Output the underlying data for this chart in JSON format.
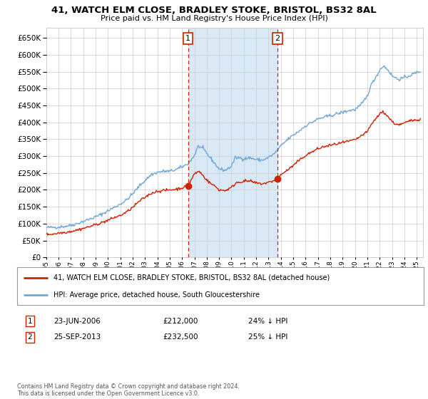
{
  "title": "41, WATCH ELM CLOSE, BRADLEY STOKE, BRISTOL, BS32 8AL",
  "subtitle": "Price paid vs. HM Land Registry's House Price Index (HPI)",
  "legend_line1": "41, WATCH ELM CLOSE, BRADLEY STOKE, BRISTOL, BS32 8AL (detached house)",
  "legend_line2": "HPI: Average price, detached house, South Gloucestershire",
  "event1_label": "1",
  "event1_date": "23-JUN-2006",
  "event1_price": "£212,000",
  "event1_pct": "24% ↓ HPI",
  "event2_label": "2",
  "event2_date": "25-SEP-2013",
  "event2_price": "£232,500",
  "event2_pct": "25% ↓ HPI",
  "footer": "Contains HM Land Registry data © Crown copyright and database right 2024.\nThis data is licensed under the Open Government Licence v3.0.",
  "ylim": [
    0,
    680000
  ],
  "yticks": [
    0,
    50000,
    100000,
    150000,
    200000,
    250000,
    300000,
    350000,
    400000,
    450000,
    500000,
    550000,
    600000,
    650000
  ],
  "hpi_color": "#6fa8d8",
  "price_color": "#cc2200",
  "event_vline_color": "#cc2200",
  "shade_color": "#d8e8f5",
  "bg_color": "#ffffff",
  "grid_color": "#cccccc",
  "event1_x": 2006.48,
  "event2_x": 2013.73,
  "event1_y": 212000,
  "event2_y": 232500,
  "xmin": 1995.0,
  "xmax": 2025.5
}
